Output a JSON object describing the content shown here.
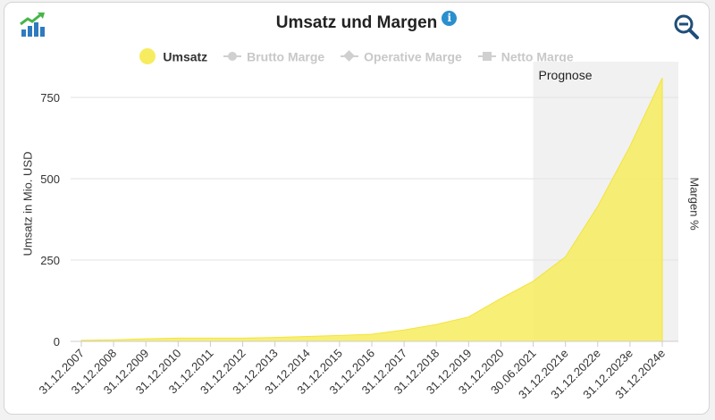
{
  "header": {
    "title": "Umsatz und Margen"
  },
  "legend": [
    {
      "label": "Umsatz",
      "active": true,
      "symbol": "yellow-dot"
    },
    {
      "label": "Brutto Marge",
      "active": false,
      "symbol": "dot"
    },
    {
      "label": "Operative Marge",
      "active": false,
      "symbol": "diamond"
    },
    {
      "label": "Netto Marge",
      "active": false,
      "symbol": "square"
    }
  ],
  "colors": {
    "area": "#f7ec5f",
    "forecast_band": "#f1f1f1",
    "grid": "#e2e2e2",
    "info": "#2a8fce",
    "zoom": "#1f4e79"
  },
  "chart_data": {
    "type": "area",
    "title": "Umsatz und Margen",
    "ylabel": "Umsatz in Mio. USD",
    "y2label": "Margen %",
    "ylim": [
      0,
      800
    ],
    "yticks": [
      0,
      250,
      500,
      750
    ],
    "grid": true,
    "legend_position": "top-center",
    "categories": [
      "31.12.2007",
      "31.12.2008",
      "31.12.2009",
      "31.12.2010",
      "31.12.2011",
      "31.12.2012",
      "31.12.2013",
      "31.12.2014",
      "31.12.2015",
      "31.12.2016",
      "31.12.2017",
      "31.12.2018",
      "31.12.2019",
      "31.12.2020",
      "30.06.2021",
      "31.12.2021e",
      "31.12.2022e",
      "31.12.2023e",
      "31.12.2024e"
    ],
    "series": [
      {
        "name": "Umsatz",
        "values": [
          3,
          5,
          8,
          10,
          10,
          10,
          12,
          15,
          18,
          22,
          35,
          52,
          75,
          132,
          185,
          260,
          415,
          600,
          810
        ]
      }
    ],
    "forecast_band": {
      "label": "Prognose",
      "from_category": "30.06.2021",
      "to_category": "31.12.2024e"
    }
  }
}
